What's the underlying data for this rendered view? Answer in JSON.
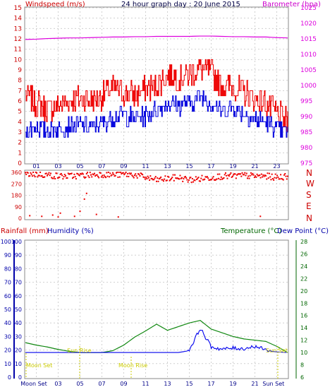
{
  "header": {
    "windspeed_label": "Windspeed (m/s)",
    "title": "24 hour graph day : 20 June 2015",
    "barometer_label": "Barometer (hpa)"
  },
  "direction_labels": [
    "N",
    "W",
    "S",
    "E",
    "N"
  ],
  "bottom_header": {
    "rainfall_label": "Rainfall (mm)",
    "humidity_label": "Humidity (%)",
    "temperature_label": "Temperature (°C)",
    "dewpoint_label": "Dew Point (°C)"
  },
  "annotations": {
    "moon_set": "Moon Set",
    "sun_rise": "Sun Rise",
    "moon_rise": "Moon Rise",
    "sun_set": "Sun Set"
  },
  "x_ticks_top": [
    "01",
    "03",
    "05",
    "07",
    "09",
    "11",
    "13",
    "15",
    "17",
    "19",
    "21",
    "23"
  ],
  "x_ticks_bottom": [
    "Moon Set",
    "03",
    "05",
    "07",
    "09",
    "11",
    "13",
    "15",
    "17",
    "19",
    "21",
    "Sun Set"
  ],
  "colors": {
    "gust": "#ee0000",
    "wind": "#0000dd",
    "barometer": "#dd00dd",
    "direction": "#ee0000",
    "humidity": "#0000aa",
    "temperature": "#118811",
    "dewpoint": "#0000ee",
    "annotation": "#cccc00",
    "axis_left_red": "#cc0000",
    "axis_humidity": "#0000aa",
    "axis_temp": "#006600",
    "grid": "#d0d0d0"
  },
  "chart_data": [
    {
      "type": "line",
      "title": "24 hour graph day : 20 June 2015",
      "x": [
        0,
        1,
        2,
        3,
        4,
        5,
        6,
        7,
        8,
        9,
        10,
        11,
        12,
        13,
        14,
        15,
        16,
        17,
        18,
        19,
        20,
        21,
        22,
        23,
        24
      ],
      "ylim": [
        0,
        15
      ],
      "y2lim": [
        975,
        1025
      ],
      "yticks": [
        0,
        1,
        2,
        3,
        4,
        5,
        6,
        7,
        8,
        9,
        10,
        11,
        12,
        13,
        14,
        15
      ],
      "y2ticks": [
        975,
        980,
        985,
        990,
        995,
        1000,
        1005,
        1010,
        1015,
        1020,
        1025
      ],
      "series": [
        {
          "name": "Gust",
          "axis": "left",
          "values": [
            6.5,
            5.8,
            5.2,
            5.5,
            6.0,
            6.2,
            6.0,
            6.5,
            7.2,
            6.8,
            6.6,
            7.2,
            7.5,
            8.6,
            8.2,
            8.6,
            9.2,
            8.7,
            7.5,
            7.4,
            6.8,
            6.2,
            5.8,
            4.8,
            3.8
          ]
        },
        {
          "name": "Windspeed",
          "axis": "left",
          "values": [
            3.0,
            3.5,
            3.2,
            3.4,
            3.6,
            3.7,
            3.5,
            3.8,
            4.5,
            4.6,
            4.4,
            4.6,
            5.2,
            5.8,
            5.6,
            5.8,
            6.5,
            5.8,
            5.0,
            5.4,
            4.8,
            4.2,
            4.0,
            3.4,
            3.0
          ]
        },
        {
          "name": "Barometer",
          "axis": "right",
          "values": [
            1014.8,
            1014.9,
            1015.1,
            1015.2,
            1015.3,
            1015.3,
            1015.4,
            1015.5,
            1015.6,
            1015.6,
            1015.7,
            1015.7,
            1015.8,
            1015.8,
            1015.8,
            1015.8,
            1015.9,
            1015.9,
            1015.8,
            1015.7,
            1015.7,
            1015.6,
            1015.6,
            1015.4,
            1015.3
          ]
        }
      ]
    },
    {
      "type": "scatter",
      "ylabels": [
        "N",
        "W",
        "S",
        "E",
        "N"
      ],
      "ylim": [
        0,
        360
      ],
      "yticks": [
        0,
        90,
        180,
        270,
        360
      ],
      "series": [
        {
          "name": "Direction",
          "points": [
            [
              0.3,
              350
            ],
            [
              1.0,
              345
            ],
            [
              2.0,
              340
            ],
            [
              3.0,
              330
            ],
            [
              4.0,
              330
            ],
            [
              5.0,
              335
            ],
            [
              6.0,
              340
            ],
            [
              7.0,
              345
            ],
            [
              8.0,
              340
            ],
            [
              9.0,
              345
            ],
            [
              10.0,
              340
            ],
            [
              11.0,
              320
            ],
            [
              12.0,
              300
            ],
            [
              13.0,
              310
            ],
            [
              14.0,
              320
            ],
            [
              15.0,
              300
            ],
            [
              16.0,
              310
            ],
            [
              17.0,
              320
            ],
            [
              18.0,
              330
            ],
            [
              19.0,
              330
            ],
            [
              20.0,
              335
            ],
            [
              21.0,
              330
            ],
            [
              22.0,
              330
            ],
            [
              23.0,
              320
            ],
            [
              24.0,
              330
            ],
            [
              0.4,
              20
            ],
            [
              1.5,
              15
            ],
            [
              2.5,
              25
            ],
            [
              3.0,
              10
            ],
            [
              3.2,
              40
            ],
            [
              4.5,
              15
            ],
            [
              5.0,
              55
            ],
            [
              5.4,
              150
            ],
            [
              5.6,
              195
            ],
            [
              6.5,
              30
            ],
            [
              8.5,
              10
            ],
            [
              21.5,
              15
            ]
          ]
        }
      ]
    },
    {
      "type": "line",
      "ylim": [
        0,
        100
      ],
      "y2lim": [
        6,
        28
      ],
      "yticks": [
        0,
        10,
        20,
        30,
        40,
        50,
        60,
        70,
        80,
        90,
        100
      ],
      "y2ticks": [
        6,
        8,
        10,
        12,
        14,
        16,
        18,
        20,
        22,
        24,
        26,
        28
      ],
      "series": [
        {
          "name": "Temperature",
          "axis": "right",
          "values": [
            11.6,
            11.2,
            10.9,
            10.5,
            10.2,
            10.0,
            10.0,
            10.0,
            10.3,
            11.2,
            12.5,
            13.5,
            14.6,
            13.6,
            14.2,
            14.8,
            15.2,
            13.8,
            13.2,
            12.6,
            12.2,
            12.0,
            11.8,
            11.0,
            10.0
          ]
        },
        {
          "name": "Dew Point",
          "axis": "right",
          "values": [
            10.0,
            10.0,
            10.0,
            10.0,
            10.0,
            10.0,
            10.0,
            10.0,
            10.0,
            10.0,
            10.0,
            10.0,
            10.0,
            10.0,
            10.0,
            10.3,
            13.8,
            10.8,
            10.4,
            10.6,
            10.5,
            10.9,
            10.3,
            10.1,
            10.0
          ]
        },
        {
          "name": "Humidity",
          "axis": "left",
          "values": [
            0,
            0,
            0,
            0,
            0,
            0,
            0,
            0,
            0,
            0,
            0,
            0,
            0,
            0,
            0,
            0,
            0,
            0,
            0,
            0,
            0,
            0,
            0,
            0,
            0
          ]
        }
      ]
    }
  ]
}
